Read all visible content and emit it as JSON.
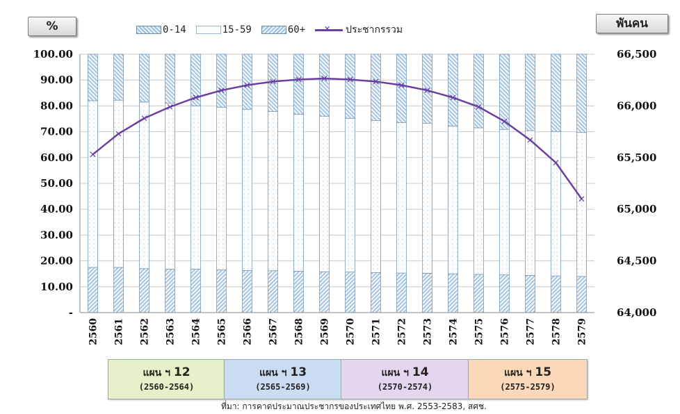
{
  "chart_data": {
    "type": "bar",
    "stacked": true,
    "percent_stacked": true,
    "categories": [
      "2560",
      "2561",
      "2562",
      "2563",
      "2564",
      "2565",
      "2566",
      "2567",
      "2568",
      "2569",
      "2570",
      "2571",
      "2572",
      "2573",
      "2574",
      "2575",
      "2576",
      "2577",
      "2578",
      "2579"
    ],
    "series": [
      {
        "name": "0-14",
        "values": [
          17.5,
          17.5,
          17.0,
          16.8,
          16.8,
          16.5,
          16.3,
          16.2,
          16.0,
          15.8,
          15.7,
          15.5,
          15.3,
          15.2,
          15.0,
          14.8,
          14.6,
          14.4,
          14.2,
          14.0
        ]
      },
      {
        "name": "15-59",
        "values": [
          64.5,
          64.7,
          64.5,
          64.2,
          63.2,
          63.0,
          62.4,
          61.6,
          60.8,
          60.2,
          59.5,
          58.8,
          58.2,
          58.1,
          57.2,
          56.7,
          56.3,
          56.0,
          55.8,
          55.7
        ]
      },
      {
        "name": "60+",
        "values": [
          18.0,
          17.8,
          18.5,
          19.0,
          20.0,
          20.5,
          21.3,
          22.2,
          23.2,
          24.0,
          24.8,
          25.7,
          26.5,
          26.7,
          27.8,
          28.5,
          29.1,
          29.6,
          30.0,
          30.3
        ]
      },
      {
        "name": "ประชากรรวม",
        "type": "line",
        "axis": "right",
        "values": [
          65530,
          65730,
          65880,
          65990,
          66080,
          66150,
          66200,
          66235,
          66255,
          66265,
          66255,
          66235,
          66200,
          66150,
          66080,
          65990,
          65850,
          65670,
          65450,
          65100
        ]
      }
    ],
    "y_left": {
      "unit": "%",
      "ylim": [
        0,
        100
      ],
      "ticks": [
        "-",
        "10.00",
        "20.00",
        "30.00",
        "40.00",
        "50.00",
        "60.00",
        "70.00",
        "80.00",
        "90.00",
        "100.00"
      ]
    },
    "y_right": {
      "unit": "พันคน",
      "ylim": [
        64000,
        66500
      ],
      "ticks": [
        "64,000",
        "64,500",
        "65,000",
        "65,500",
        "66,000",
        "66,500"
      ]
    },
    "grid": true,
    "legend": "top",
    "colors": {
      "bar_pattern": "#9fc0dc",
      "bar_border": "#6f8ba5",
      "line": "#6b3fa0"
    }
  },
  "units": {
    "left": "%",
    "right": "พันคน"
  },
  "plans": [
    {
      "name": "แผน ฯ",
      "number": "12",
      "range": "(2560-2564)",
      "color": "#e3f0c8"
    },
    {
      "name": "แผน ฯ",
      "number": "13",
      "range": "(2565-2569)",
      "color": "#c9dcf2"
    },
    {
      "name": "แผน ฯ",
      "number": "14",
      "range": "(2570-2574)",
      "color": "#e4d6f0"
    },
    {
      "name": "แผน ฯ",
      "number": "15",
      "range": "(2575-2579)",
      "color": "#fbd8b8"
    }
  ],
  "source": "ที่มา: การคาดประมาณประชากรของประเทศไทย พ.ศ. 2553-2583, สศช."
}
